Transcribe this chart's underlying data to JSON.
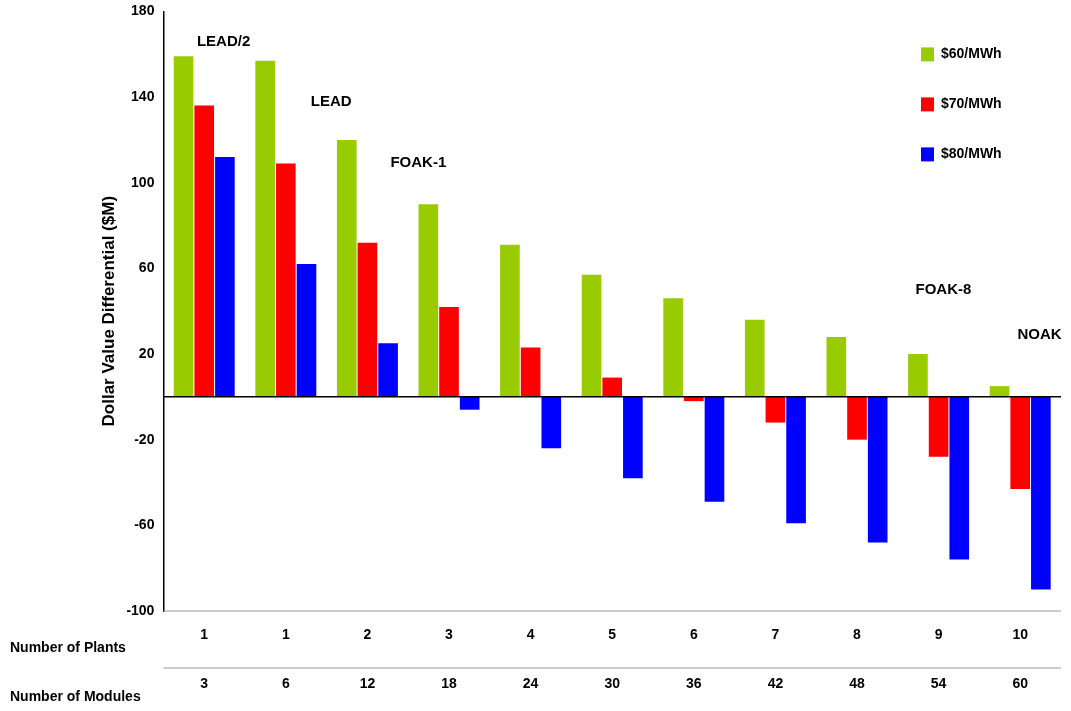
{
  "chart_data": {
    "type": "bar",
    "ylabel": "Dollar Value Differential ($M)",
    "categories": [
      "1\n3",
      "1\n6",
      "2\n12",
      "3\n18",
      "4\n24",
      "5\n30",
      "6\n36",
      "7\n42",
      "8\n48",
      "9\n54",
      "10\n60"
    ],
    "series": [
      {
        "name": "$60/MWh",
        "color": "#99cc00",
        "values": [
          159,
          157,
          120,
          90,
          71,
          57,
          46,
          36,
          28,
          20,
          5
        ]
      },
      {
        "name": "$70/MWh",
        "color": "#ff0000",
        "values": [
          136,
          109,
          72,
          42,
          23,
          9,
          -2,
          -12,
          -20,
          -28,
          -43
        ]
      },
      {
        "name": "$80/MWh",
        "color": "#0000ff",
        "values": [
          112,
          62,
          25,
          -6,
          -24,
          -38,
          -49,
          -59,
          -68,
          -76,
          -90
        ]
      }
    ],
    "ylim": [
      -100,
      180
    ],
    "yticks": [
      -100,
      -60,
      -20,
      20,
      60,
      100,
      140,
      180
    ],
    "grid": false,
    "legend": "top right",
    "annotations": [
      "Number of Plants",
      "Number of Modules",
      "LEAD/2",
      "LEAD",
      "FOAK-1",
      "FOAK-8",
      "NOAK"
    ]
  }
}
